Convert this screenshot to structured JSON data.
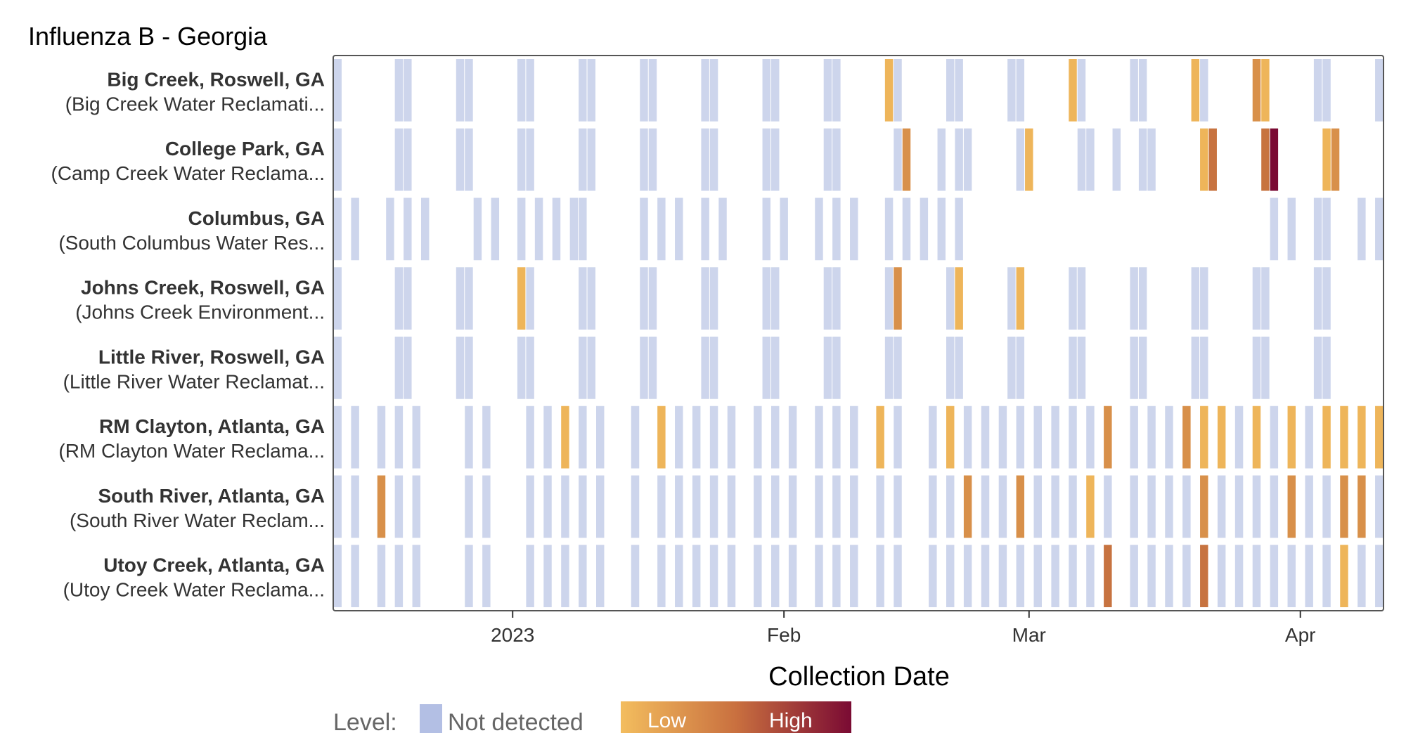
{
  "chart_data": {
    "type": "heatmap",
    "title": "Influenza B - Georgia",
    "xlabel": "Collection Date",
    "ylabel": "",
    "x_domain_days": [
      -20,
      99
    ],
    "x_domain_note": "days relative to 2023-01-01",
    "x_ticks": [
      {
        "day": 0,
        "label": "2023"
      },
      {
        "day": 31,
        "label": "Feb"
      },
      {
        "day": 59,
        "label": "Mar"
      },
      {
        "day": 90,
        "label": "Apr"
      }
    ],
    "sites": [
      {
        "name": "Big Creek, Roswell, GA",
        "plant": "(Big Creek Water Reclamati...",
        "obs": [
          [
            -20,
            0
          ],
          [
            -13,
            0
          ],
          [
            -12,
            0
          ],
          [
            -6,
            0
          ],
          [
            -5,
            0
          ],
          [
            1,
            0
          ],
          [
            2,
            0
          ],
          [
            8,
            0
          ],
          [
            9,
            0
          ],
          [
            15,
            0
          ],
          [
            16,
            0
          ],
          [
            22,
            0
          ],
          [
            23,
            0
          ],
          [
            29,
            0
          ],
          [
            30,
            0
          ],
          [
            36,
            0
          ],
          [
            37,
            0
          ],
          [
            43,
            1
          ],
          [
            44,
            0
          ],
          [
            50,
            0
          ],
          [
            51,
            0
          ],
          [
            57,
            0
          ],
          [
            58,
            0
          ],
          [
            64,
            1
          ],
          [
            65,
            0
          ],
          [
            71,
            0
          ],
          [
            72,
            0
          ],
          [
            78,
            1
          ],
          [
            79,
            0
          ],
          [
            85,
            2
          ],
          [
            86,
            1
          ],
          [
            92,
            0
          ],
          [
            93,
            0
          ],
          [
            99,
            0
          ]
        ]
      },
      {
        "name": "College Park, GA",
        "plant": "(Camp Creek Water Reclama...",
        "obs": [
          [
            -20,
            0
          ],
          [
            -13,
            0
          ],
          [
            -12,
            0
          ],
          [
            -6,
            0
          ],
          [
            -5,
            0
          ],
          [
            1,
            0
          ],
          [
            2,
            0
          ],
          [
            8,
            0
          ],
          [
            9,
            0
          ],
          [
            15,
            0
          ],
          [
            16,
            0
          ],
          [
            22,
            0
          ],
          [
            23,
            0
          ],
          [
            29,
            0
          ],
          [
            30,
            0
          ],
          [
            36,
            0
          ],
          [
            37,
            0
          ],
          [
            44,
            0
          ],
          [
            45,
            2
          ],
          [
            49,
            0
          ],
          [
            51,
            0
          ],
          [
            52,
            0
          ],
          [
            58,
            0
          ],
          [
            59,
            1
          ],
          [
            65,
            0
          ],
          [
            66,
            0
          ],
          [
            69,
            0
          ],
          [
            72,
            0
          ],
          [
            73,
            0
          ],
          [
            79,
            1
          ],
          [
            80,
            3
          ],
          [
            86,
            3
          ],
          [
            87,
            5
          ],
          [
            93,
            1
          ],
          [
            94,
            2
          ]
        ]
      },
      {
        "name": "Columbus, GA",
        "plant": "(South Columbus Water Res...",
        "obs": [
          [
            -20,
            0
          ],
          [
            -18,
            0
          ],
          [
            -14,
            0
          ],
          [
            -12,
            0
          ],
          [
            -10,
            0
          ],
          [
            -4,
            0
          ],
          [
            -2,
            0
          ],
          [
            1,
            0
          ],
          [
            3,
            0
          ],
          [
            5,
            0
          ],
          [
            7,
            0
          ],
          [
            8,
            0
          ],
          [
            15,
            0
          ],
          [
            17,
            0
          ],
          [
            19,
            0
          ],
          [
            22,
            0
          ],
          [
            24,
            0
          ],
          [
            29,
            0
          ],
          [
            31,
            0
          ],
          [
            35,
            0
          ],
          [
            37,
            0
          ],
          [
            39,
            0
          ],
          [
            43,
            0
          ],
          [
            45,
            0
          ],
          [
            47,
            0
          ],
          [
            49,
            0
          ],
          [
            51,
            0
          ],
          [
            87,
            0
          ],
          [
            89,
            0
          ],
          [
            92,
            0
          ],
          [
            93,
            0
          ],
          [
            97,
            0
          ],
          [
            99,
            0
          ]
        ]
      },
      {
        "name": "Johns Creek, Roswell, GA",
        "plant": "(Johns Creek Environment...",
        "obs": [
          [
            -20,
            0
          ],
          [
            -13,
            0
          ],
          [
            -12,
            0
          ],
          [
            -6,
            0
          ],
          [
            -5,
            0
          ],
          [
            1,
            1
          ],
          [
            2,
            0
          ],
          [
            8,
            0
          ],
          [
            9,
            0
          ],
          [
            15,
            0
          ],
          [
            16,
            0
          ],
          [
            22,
            0
          ],
          [
            23,
            0
          ],
          [
            29,
            0
          ],
          [
            30,
            0
          ],
          [
            36,
            0
          ],
          [
            37,
            0
          ],
          [
            43,
            0
          ],
          [
            44,
            2
          ],
          [
            50,
            0
          ],
          [
            51,
            1
          ],
          [
            57,
            0
          ],
          [
            58,
            1
          ],
          [
            64,
            0
          ],
          [
            65,
            0
          ],
          [
            71,
            0
          ],
          [
            72,
            0
          ],
          [
            78,
            0
          ],
          [
            79,
            0
          ],
          [
            85,
            0
          ],
          [
            86,
            0
          ],
          [
            92,
            0
          ],
          [
            93,
            0
          ]
        ]
      },
      {
        "name": "Little River, Roswell, GA",
        "plant": "(Little River Water Reclamat...",
        "obs": [
          [
            -20,
            0
          ],
          [
            -13,
            0
          ],
          [
            -12,
            0
          ],
          [
            -6,
            0
          ],
          [
            -5,
            0
          ],
          [
            1,
            0
          ],
          [
            2,
            0
          ],
          [
            8,
            0
          ],
          [
            9,
            0
          ],
          [
            15,
            0
          ],
          [
            16,
            0
          ],
          [
            22,
            0
          ],
          [
            23,
            0
          ],
          [
            29,
            0
          ],
          [
            30,
            0
          ],
          [
            36,
            0
          ],
          [
            37,
            0
          ],
          [
            43,
            0
          ],
          [
            44,
            0
          ],
          [
            50,
            0
          ],
          [
            51,
            0
          ],
          [
            57,
            0
          ],
          [
            58,
            0
          ],
          [
            64,
            0
          ],
          [
            65,
            0
          ],
          [
            71,
            0
          ],
          [
            72,
            0
          ],
          [
            78,
            0
          ],
          [
            79,
            0
          ],
          [
            85,
            0
          ],
          [
            86,
            0
          ],
          [
            92,
            0
          ],
          [
            93,
            0
          ]
        ]
      },
      {
        "name": "RM Clayton, Atlanta, GA",
        "plant": "(RM Clayton Water Reclama...",
        "obs": [
          [
            -20,
            0
          ],
          [
            -18,
            0
          ],
          [
            -15,
            0
          ],
          [
            -13,
            0
          ],
          [
            -11,
            0
          ],
          [
            -5,
            0
          ],
          [
            -3,
            0
          ],
          [
            2,
            0
          ],
          [
            4,
            0
          ],
          [
            6,
            1
          ],
          [
            8,
            0
          ],
          [
            10,
            0
          ],
          [
            14,
            0
          ],
          [
            17,
            1
          ],
          [
            19,
            0
          ],
          [
            21,
            0
          ],
          [
            23,
            0
          ],
          [
            25,
            0
          ],
          [
            28,
            0
          ],
          [
            30,
            0
          ],
          [
            32,
            0
          ],
          [
            35,
            0
          ],
          [
            37,
            0
          ],
          [
            39,
            0
          ],
          [
            42,
            1
          ],
          [
            44,
            0
          ],
          [
            48,
            0
          ],
          [
            50,
            1
          ],
          [
            52,
            0
          ],
          [
            54,
            0
          ],
          [
            56,
            0
          ],
          [
            58,
            0
          ],
          [
            60,
            0
          ],
          [
            62,
            0
          ],
          [
            64,
            0
          ],
          [
            66,
            0
          ],
          [
            68,
            2
          ],
          [
            71,
            0
          ],
          [
            73,
            0
          ],
          [
            75,
            0
          ],
          [
            77,
            2
          ],
          [
            79,
            1
          ],
          [
            81,
            1
          ],
          [
            83,
            0
          ],
          [
            85,
            1
          ],
          [
            87,
            0
          ],
          [
            89,
            1
          ],
          [
            91,
            0
          ],
          [
            93,
            1
          ],
          [
            95,
            1
          ],
          [
            97,
            1
          ],
          [
            99,
            1
          ]
        ]
      },
      {
        "name": "South River, Atlanta, GA",
        "plant": "(South River Water Reclam...",
        "obs": [
          [
            -20,
            0
          ],
          [
            -18,
            0
          ],
          [
            -15,
            2
          ],
          [
            -13,
            0
          ],
          [
            -11,
            0
          ],
          [
            -5,
            0
          ],
          [
            -3,
            0
          ],
          [
            2,
            0
          ],
          [
            4,
            0
          ],
          [
            6,
            0
          ],
          [
            8,
            0
          ],
          [
            10,
            0
          ],
          [
            14,
            0
          ],
          [
            17,
            0
          ],
          [
            19,
            0
          ],
          [
            21,
            0
          ],
          [
            23,
            0
          ],
          [
            25,
            0
          ],
          [
            28,
            0
          ],
          [
            30,
            0
          ],
          [
            32,
            0
          ],
          [
            35,
            0
          ],
          [
            37,
            0
          ],
          [
            39,
            0
          ],
          [
            42,
            0
          ],
          [
            44,
            0
          ],
          [
            48,
            0
          ],
          [
            50,
            0
          ],
          [
            52,
            2
          ],
          [
            54,
            0
          ],
          [
            56,
            0
          ],
          [
            58,
            2
          ],
          [
            60,
            0
          ],
          [
            62,
            0
          ],
          [
            64,
            0
          ],
          [
            66,
            1
          ],
          [
            68,
            0
          ],
          [
            71,
            0
          ],
          [
            73,
            0
          ],
          [
            75,
            0
          ],
          [
            77,
            0
          ],
          [
            79,
            2
          ],
          [
            81,
            0
          ],
          [
            83,
            0
          ],
          [
            85,
            0
          ],
          [
            87,
            0
          ],
          [
            89,
            2
          ],
          [
            91,
            0
          ],
          [
            93,
            0
          ],
          [
            95,
            2
          ],
          [
            97,
            2
          ],
          [
            99,
            0
          ]
        ]
      },
      {
        "name": "Utoy Creek, Atlanta, GA",
        "plant": "(Utoy Creek Water Reclama...",
        "obs": [
          [
            -20,
            0
          ],
          [
            -18,
            0
          ],
          [
            -15,
            0
          ],
          [
            -13,
            0
          ],
          [
            -11,
            0
          ],
          [
            -5,
            0
          ],
          [
            -3,
            0
          ],
          [
            2,
            0
          ],
          [
            4,
            0
          ],
          [
            6,
            0
          ],
          [
            8,
            0
          ],
          [
            10,
            0
          ],
          [
            14,
            0
          ],
          [
            17,
            0
          ],
          [
            19,
            0
          ],
          [
            21,
            0
          ],
          [
            23,
            0
          ],
          [
            25,
            0
          ],
          [
            28,
            0
          ],
          [
            30,
            0
          ],
          [
            32,
            0
          ],
          [
            35,
            0
          ],
          [
            37,
            0
          ],
          [
            39,
            0
          ],
          [
            42,
            0
          ],
          [
            44,
            0
          ],
          [
            48,
            0
          ],
          [
            50,
            0
          ],
          [
            52,
            0
          ],
          [
            54,
            0
          ],
          [
            56,
            0
          ],
          [
            58,
            0
          ],
          [
            60,
            0
          ],
          [
            62,
            0
          ],
          [
            64,
            0
          ],
          [
            66,
            0
          ],
          [
            68,
            3
          ],
          [
            71,
            0
          ],
          [
            73,
            0
          ],
          [
            75,
            0
          ],
          [
            77,
            0
          ],
          [
            79,
            3
          ],
          [
            81,
            0
          ],
          [
            83,
            0
          ],
          [
            85,
            0
          ],
          [
            87,
            0
          ],
          [
            89,
            0
          ],
          [
            91,
            0
          ],
          [
            93,
            0
          ],
          [
            95,
            1
          ],
          [
            97,
            0
          ],
          [
            99,
            0
          ]
        ]
      }
    ],
    "level_scale": {
      "0": "#cdd5ec",
      "1": "#eeb55a",
      "2": "#d8904a",
      "3": "#c77340",
      "4": "#a33a35",
      "5": "#7a0a33"
    },
    "legend": {
      "label": "Level:",
      "not_detected": "Not detected",
      "low": "Low",
      "high": "High",
      "not_detected_color": "#b3bfe4",
      "gradient_colors": [
        "#f3bd5e",
        "#c9703f",
        "#7a0a33"
      ]
    }
  }
}
